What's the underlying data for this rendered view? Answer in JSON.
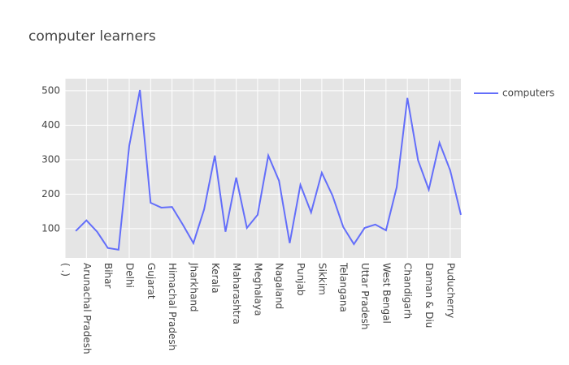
{
  "chart_data": {
    "type": "line",
    "title": "computer learners",
    "categories": [
      "( .)",
      null,
      "Arunachal Pradesh",
      null,
      "Bihar",
      null,
      "Delhi",
      null,
      "Gujarat",
      null,
      "Himachal Pradesh",
      null,
      "Jharkhand",
      null,
      "Kerala",
      null,
      "Maharashtra",
      null,
      "Meghalaya",
      null,
      "Nagaland",
      null,
      "Punjab",
      null,
      "Sikkim",
      null,
      "Telangana",
      null,
      "Uttar Pradesh",
      null,
      "West Bengal",
      null,
      "Chandigarh",
      null,
      "Daman & Diu",
      null,
      "Puducherry",
      null
    ],
    "series": [
      {
        "name": "computers",
        "color": "#636efa",
        "values": [
          null,
          93,
          124,
          91,
          44,
          39,
          340,
          502,
          175,
          161,
          163,
          112,
          58,
          156,
          312,
          91,
          248,
          102,
          140,
          312,
          239,
          58,
          227,
          147,
          262,
          196,
          105,
          55,
          102,
          112,
          95,
          220,
          479,
          298,
          213,
          349,
          269,
          140
        ]
      }
    ],
    "ylim": [
      15,
      535
    ],
    "yticks": [
      100,
      200,
      300,
      400,
      500
    ],
    "grid": true,
    "legend": "right"
  }
}
